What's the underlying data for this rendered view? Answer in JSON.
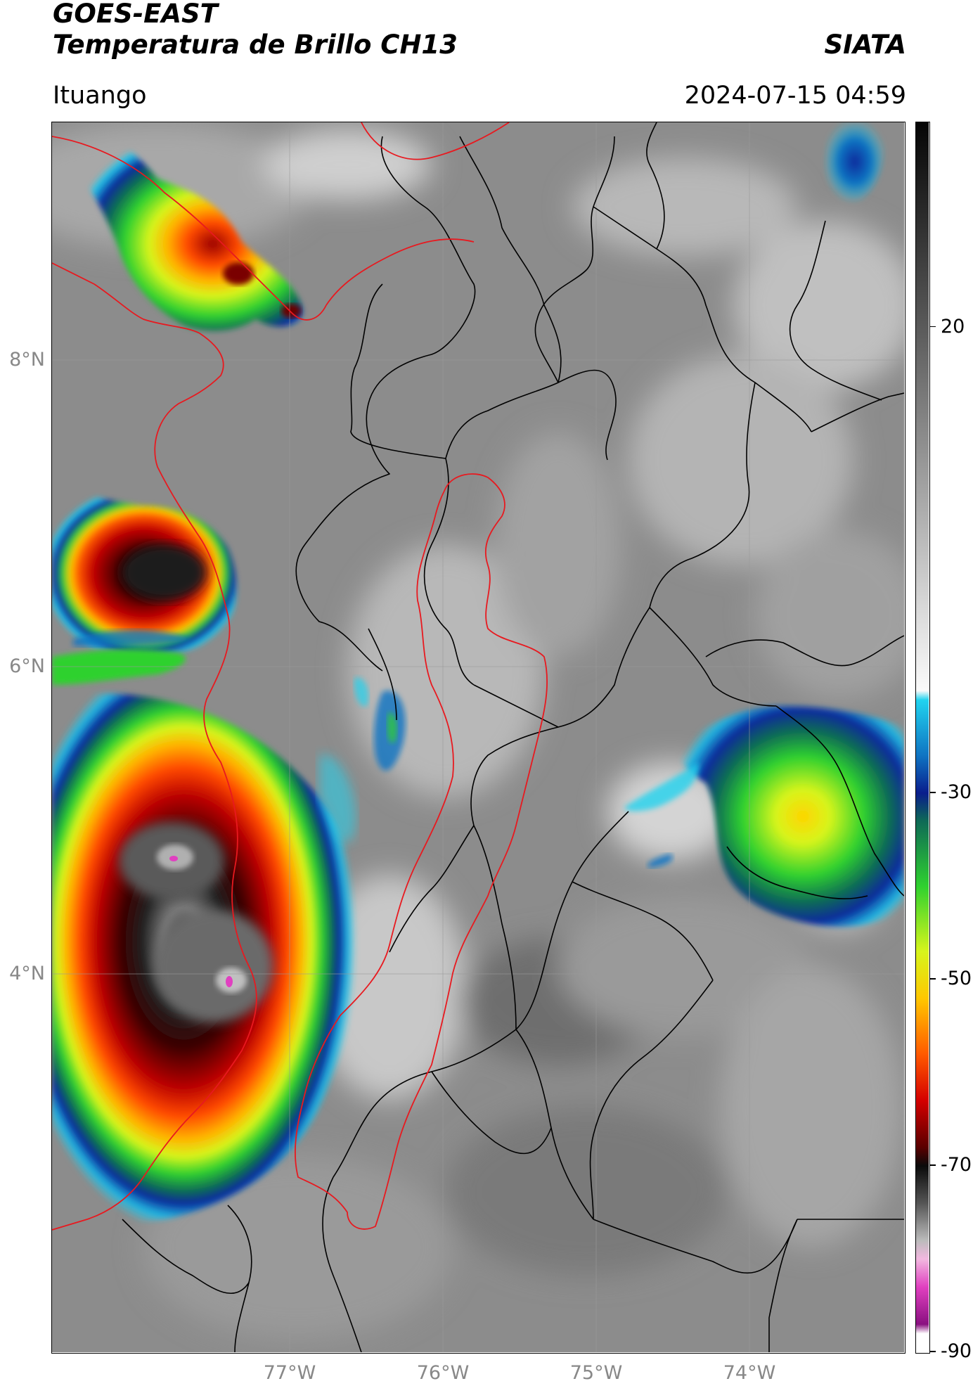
{
  "header": {
    "title_line1": "GOES-EAST",
    "title_line2": "Temperatura de Brillo CH13",
    "organization": "SIATA",
    "location": "Ituango",
    "timestamp": "2024-07-15 04:59"
  },
  "map": {
    "lat_labels": [
      "8°N",
      "6°N",
      "4°N"
    ],
    "lon_labels": [
      "77°W",
      "76°W",
      "75°W",
      "74°W"
    ],
    "colors": {
      "basin_outline": "#e8191f",
      "coastline": "#e8191f",
      "admin_borders": "#000000",
      "gridlines": "#9a9a9a"
    },
    "cloud_systems": [
      {
        "name": "northwest-storm",
        "min_temp_c": -68
      },
      {
        "name": "west-storm",
        "min_temp_c": -70
      },
      {
        "name": "southwest-storm",
        "min_temp_c": -85
      },
      {
        "name": "east-storm",
        "min_temp_c": -52
      },
      {
        "name": "northeast-cell",
        "min_temp_c": -30
      }
    ]
  },
  "colorbar": {
    "tick_labels": [
      "20",
      "-30",
      "-50",
      "-70",
      "-90"
    ],
    "tick_values": [
      20,
      -30,
      -50,
      -70,
      -90
    ],
    "range": [
      -90,
      42
    ],
    "color_stops": [
      {
        "value": 42,
        "color": "#050505"
      },
      {
        "value": 20,
        "color": "#5a5a5a"
      },
      {
        "value": -10,
        "color": "#d8d8d8"
      },
      {
        "value": -19,
        "color": "#fafafa"
      },
      {
        "value": -20,
        "color": "#21d3ef"
      },
      {
        "value": -26,
        "color": "#0f73c2"
      },
      {
        "value": -30,
        "color": "#0a1d8c"
      },
      {
        "value": -33,
        "color": "#0e6a56"
      },
      {
        "value": -40,
        "color": "#2fd12f"
      },
      {
        "value": -47,
        "color": "#d7f51c"
      },
      {
        "value": -52,
        "color": "#ffc800"
      },
      {
        "value": -58,
        "color": "#ff5a00"
      },
      {
        "value": -63,
        "color": "#d40000"
      },
      {
        "value": -68,
        "color": "#5a0000"
      },
      {
        "value": -70,
        "color": "#0a0a0a"
      },
      {
        "value": -74,
        "color": "#555555"
      },
      {
        "value": -78,
        "color": "#bbbbbb"
      },
      {
        "value": -80,
        "color": "#f2b8e0"
      },
      {
        "value": -83,
        "color": "#e040c0"
      },
      {
        "value": -87,
        "color": "#8a1080"
      },
      {
        "value": -88,
        "color": "#ffffff"
      },
      {
        "value": -90,
        "color": "#ffffff"
      }
    ]
  }
}
